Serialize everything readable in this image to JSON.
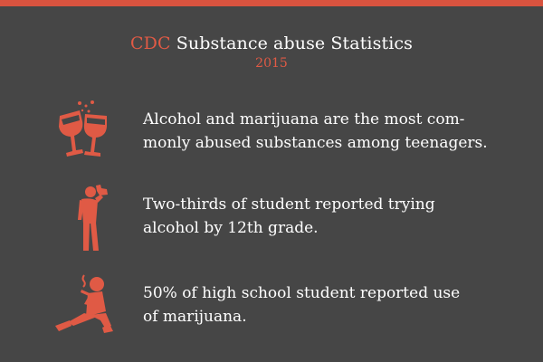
{
  "header": {
    "title_accent": "CDC",
    "title_rest": "Substance abuse Statistics",
    "year": "2015"
  },
  "colors": {
    "background": "#464646",
    "accent": "#e05a45",
    "text": "#ffffff"
  },
  "stats": [
    {
      "icon": "wine-glasses-icon",
      "text": "Alcohol and marijuana are the most com-\nmonly abused substances among teenagers."
    },
    {
      "icon": "person-drinking-icon",
      "text": "Two-thirds of student reported trying\nalcohol by 12th grade."
    },
    {
      "icon": "person-smoking-icon",
      "text": "50% of high school student reported use\nof marijuana."
    }
  ]
}
